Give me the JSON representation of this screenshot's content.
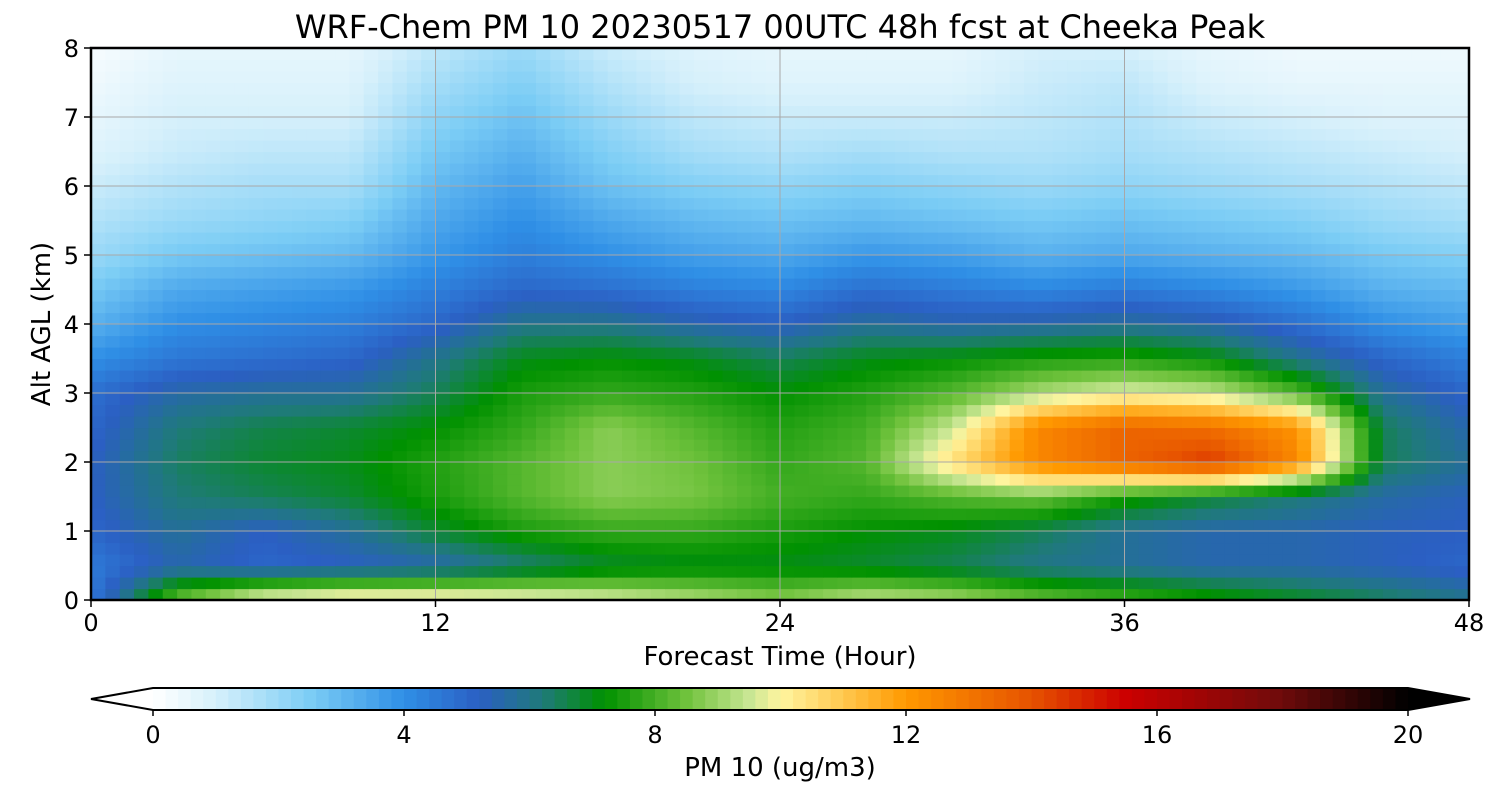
{
  "chart_data": {
    "type": "heatmap",
    "title": "WRF-Chem PM 10  20230517 00UTC 48h fcst at Cheeka Peak",
    "xlabel": "Forecast Time (Hour)",
    "ylabel": "Alt AGL (km)",
    "xlim": [
      0,
      48
    ],
    "ylim": [
      0,
      8
    ],
    "x_ticks": [
      0,
      12,
      24,
      36,
      48
    ],
    "y_ticks": [
      0,
      1,
      2,
      3,
      4,
      5,
      6,
      7,
      8
    ],
    "grid": true,
    "x": [
      0,
      3,
      6,
      9,
      12,
      15,
      18,
      21,
      24,
      27,
      30,
      33,
      36,
      39,
      42,
      45,
      48
    ],
    "y": [
      0,
      0.5,
      1,
      1.5,
      2,
      2.5,
      3,
      3.5,
      4,
      4.5,
      5,
      5.5,
      6,
      6.5,
      7,
      7.5,
      8
    ],
    "z": [
      [
        4.5,
        8.5,
        10.2,
        10.6,
        10.5,
        10.2,
        9.8,
        9.3,
        8.8,
        9.5,
        9.2,
        8.5,
        8.0,
        7.5,
        7.0,
        6.5,
        6.0
      ],
      [
        4.5,
        5.5,
        5.0,
        5.2,
        5.5,
        6.2,
        6.8,
        7.0,
        7.0,
        6.8,
        6.5,
        6.0,
        5.8,
        5.5,
        5.5,
        5.3,
        5.0
      ],
      [
        5.0,
        5.8,
        5.2,
        5.8,
        6.8,
        7.5,
        7.8,
        7.8,
        7.5,
        7.2,
        7.0,
        6.5,
        5.8,
        5.5,
        5.5,
        5.3,
        5.2
      ],
      [
        5.2,
        6.2,
        6.5,
        6.8,
        7.5,
        8.2,
        8.8,
        8.6,
        8.0,
        7.8,
        8.2,
        8.5,
        7.5,
        6.8,
        6.2,
        5.6,
        5.3
      ],
      [
        5.2,
        6.4,
        6.8,
        7.0,
        7.6,
        8.2,
        8.8,
        8.5,
        7.8,
        8.2,
        10.5,
        12.5,
        13.5,
        14.5,
        12.5,
        6.5,
        5.8
      ],
      [
        5.0,
        6.2,
        6.6,
        6.8,
        7.2,
        7.8,
        8.8,
        8.2,
        7.6,
        8.0,
        9.5,
        12.5,
        13.5,
        13.2,
        12.2,
        6.5,
        5.5
      ],
      [
        4.8,
        5.6,
        5.8,
        5.8,
        6.5,
        7.5,
        7.8,
        7.6,
        7.2,
        7.6,
        8.2,
        9.2,
        9.8,
        9.5,
        8.2,
        5.8,
        5.0
      ],
      [
        4.0,
        4.6,
        4.8,
        5.0,
        6.0,
        7.0,
        7.2,
        7.0,
        6.5,
        7.0,
        7.2,
        7.5,
        7.6,
        7.2,
        6.0,
        5.0,
        4.4
      ],
      [
        3.2,
        4.0,
        4.2,
        4.4,
        5.0,
        6.0,
        6.0,
        5.5,
        5.2,
        5.8,
        5.5,
        5.6,
        5.8,
        5.5,
        4.8,
        4.0,
        3.6
      ],
      [
        2.6,
        3.4,
        3.6,
        3.8,
        4.4,
        5.0,
        4.8,
        4.4,
        4.2,
        4.8,
        4.5,
        4.2,
        4.5,
        4.2,
        3.8,
        3.2,
        3.0
      ],
      [
        2.0,
        2.6,
        2.8,
        3.0,
        3.8,
        4.4,
        4.0,
        3.6,
        3.4,
        3.8,
        3.6,
        3.2,
        3.4,
        3.2,
        3.0,
        2.6,
        2.4
      ],
      [
        1.6,
        2.0,
        2.2,
        2.4,
        3.4,
        4.0,
        3.4,
        3.0,
        2.8,
        3.0,
        2.8,
        2.6,
        2.8,
        2.6,
        2.4,
        2.0,
        1.8
      ],
      [
        1.2,
        1.6,
        1.8,
        1.8,
        3.0,
        3.6,
        2.8,
        2.4,
        2.2,
        2.4,
        2.2,
        2.0,
        2.2,
        2.0,
        1.8,
        1.6,
        1.4
      ],
      [
        0.8,
        1.2,
        1.4,
        1.4,
        2.6,
        3.2,
        2.4,
        1.8,
        1.6,
        1.8,
        1.6,
        1.6,
        1.8,
        1.6,
        1.4,
        1.2,
        1.0
      ],
      [
        0.6,
        1.0,
        1.0,
        1.0,
        2.2,
        2.8,
        2.0,
        1.4,
        1.2,
        1.2,
        1.2,
        1.4,
        1.6,
        1.2,
        1.0,
        0.8,
        0.8
      ],
      [
        0.4,
        0.8,
        0.8,
        0.8,
        1.8,
        2.4,
        1.6,
        1.0,
        0.8,
        0.8,
        0.8,
        1.2,
        1.4,
        0.8,
        0.6,
        0.6,
        0.6
      ],
      [
        0.2,
        0.6,
        0.6,
        0.6,
        1.4,
        2.0,
        1.2,
        0.8,
        0.6,
        0.6,
        0.6,
        1.0,
        1.0,
        0.6,
        0.4,
        0.4,
        0.4
      ]
    ],
    "colorbar": {
      "label": "PM 10  (ug/m3)",
      "range": [
        0,
        20
      ],
      "ticks": [
        0,
        4,
        8,
        12,
        16,
        20
      ],
      "extend": "both",
      "colors": [
        {
          "value": 0,
          "color": "#ffffff"
        },
        {
          "value": 1,
          "color": "#d6f0fb"
        },
        {
          "value": 2.5,
          "color": "#7ccdf5"
        },
        {
          "value": 4,
          "color": "#2f8fe6"
        },
        {
          "value": 5.2,
          "color": "#2b5fc3"
        },
        {
          "value": 6.2,
          "color": "#1f7a7a"
        },
        {
          "value": 7.2,
          "color": "#009100"
        },
        {
          "value": 8.5,
          "color": "#6fc23c"
        },
        {
          "value": 9.5,
          "color": "#c8e693"
        },
        {
          "value": 10,
          "color": "#fff5a0"
        },
        {
          "value": 11,
          "color": "#ffc84f"
        },
        {
          "value": 12,
          "color": "#ff9900"
        },
        {
          "value": 14,
          "color": "#e65200"
        },
        {
          "value": 15.5,
          "color": "#cc0000"
        },
        {
          "value": 18,
          "color": "#6e0b0b"
        },
        {
          "value": 20,
          "color": "#000000"
        }
      ]
    }
  }
}
